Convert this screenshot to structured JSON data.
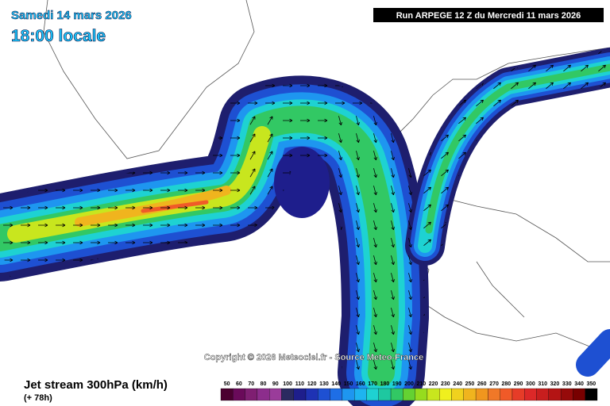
{
  "header": {
    "date": "Samedi 14 mars 2026",
    "time": "18:00 locale",
    "run": "Run ARPEGE 12 Z du Mercredi 11 mars 2026"
  },
  "map": {
    "copyright": "Copyright © 2026 Meteociel.fr - Source Meteo-France"
  },
  "footer": {
    "title": "Jet stream 300hPa (km/h)",
    "lead": "(+ 78h)"
  },
  "legend": {
    "labels": [
      50,
      60,
      70,
      80,
      90,
      100,
      110,
      120,
      130,
      140,
      150,
      160,
      170,
      180,
      190,
      200,
      210,
      220,
      230,
      240,
      250,
      260,
      270,
      280,
      290,
      300,
      310,
      320,
      330,
      340,
      350
    ],
    "colors": [
      "#4b0030",
      "#6a0a5a",
      "#7f1f72",
      "#8c2d8c",
      "#9a3c9a",
      "#2a2a60",
      "#1e1e8c",
      "#1e32b4",
      "#1e50d2",
      "#1e6ee6",
      "#1e96f0",
      "#1eb4f0",
      "#1ed2d2",
      "#1ec8a0",
      "#32c864",
      "#64d232",
      "#96dc1e",
      "#c8e61e",
      "#f0f01e",
      "#f0d21e",
      "#f0b41e",
      "#f0961e",
      "#f07828",
      "#f05a28",
      "#e63c28",
      "#dc2828",
      "#c81e1e",
      "#b41414",
      "#960a0a",
      "#780000",
      "#000000"
    ]
  }
}
